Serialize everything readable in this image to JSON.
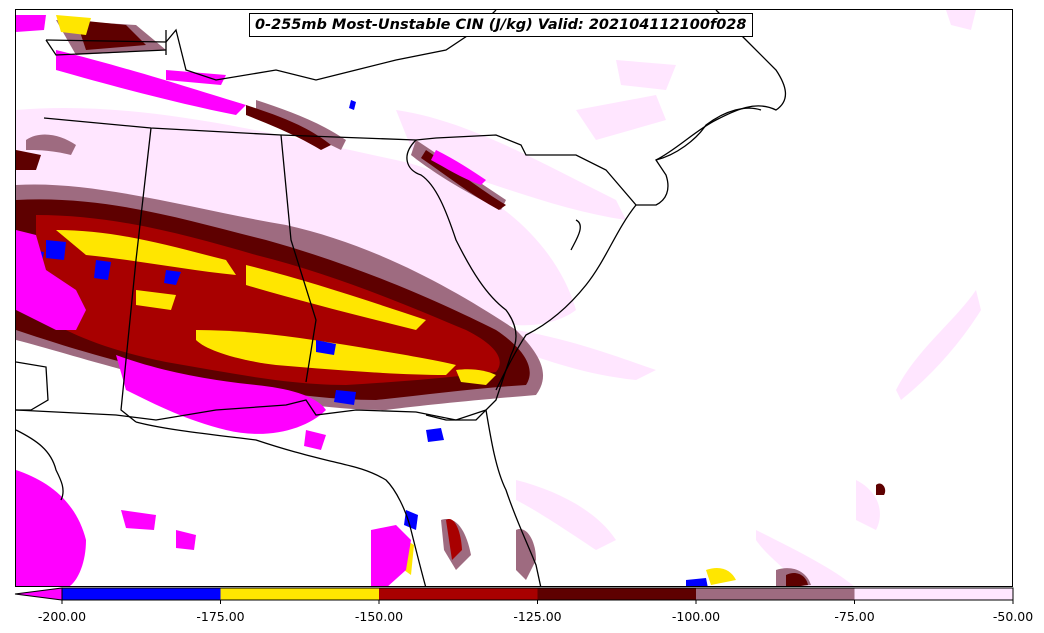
{
  "title": "0-255mb Most-Unstable CIN (J/kg) Valid: 202104112100f028",
  "colorbar": {
    "min": -200,
    "max": -50,
    "extend": "min",
    "levels": [
      -200,
      -175,
      -150,
      -125,
      -100,
      -75,
      -50
    ],
    "colors": [
      "#0000ff",
      "#ffe600",
      "#a80000",
      "#5e0000",
      "#9e6b80",
      "#ffe6ff"
    ],
    "under_color": "#ff00ff",
    "tick_labels": [
      "-200.00",
      "-175.00",
      "-150.00",
      "-125.00",
      "-100.00",
      "-75.00",
      "-50.00"
    ]
  }
}
